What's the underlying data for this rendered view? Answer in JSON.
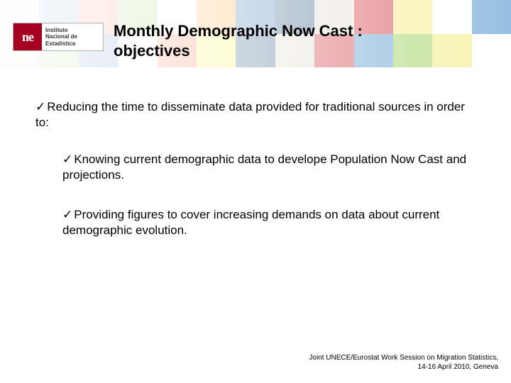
{
  "header": {
    "logo": {
      "mark_text": "ne",
      "line1": "Instituto",
      "line2": "Nacional de",
      "line3": "Estadística"
    },
    "title_line1": "Monthly Demographic Now Cast :",
    "title_line2": "objectives",
    "bg_colors_row1": [
      "#f7f4ee",
      "#4a7fbf",
      "#f05a28",
      "#8cc63f",
      "#ffffff",
      "#ff9e2c",
      "#1b5fa6",
      "#0b3d6b",
      "#d9d5cc",
      "#c9151e",
      "#f2e96b",
      "#ffffff",
      "#3a86c8"
    ],
    "bg_colors_row2": [
      "#d9d5cc",
      "#8cc63f",
      "#1b5fa6",
      "#ffffff",
      "#f05a28",
      "#ffef3d",
      "#0b3d6b",
      "#d9d2bf",
      "#c9151e",
      "#3a86c8",
      "#8cc63f",
      "#f2e96b",
      "#ffffff"
    ]
  },
  "content": {
    "bullets": [
      {
        "text": "Reducing the time to disseminate data provided for traditional sources in order to:",
        "sub": false
      },
      {
        "text": "Knowing current demographic data to develope Population Now Cast and projections.",
        "sub": true
      },
      {
        "text": "Providing figures to cover increasing demands on data about current demographic evolution.",
        "sub": true
      }
    ],
    "check_glyph": "✓"
  },
  "footer": {
    "line1": "Joint UNECE/Eurostat Work Session on Migration Statistics,",
    "line2": "14-16 April 2010, Geneva"
  }
}
